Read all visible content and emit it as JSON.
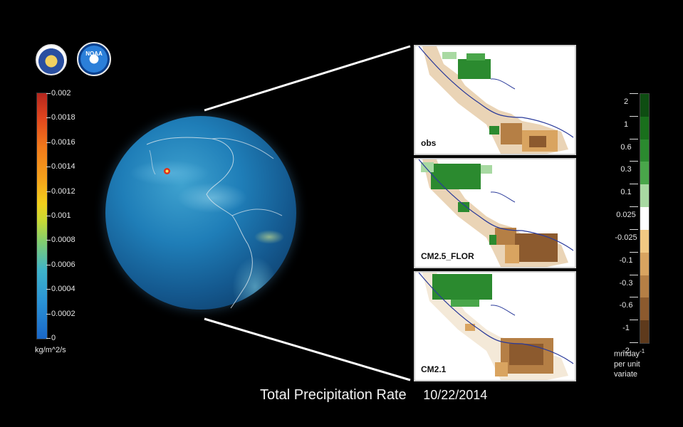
{
  "logos": {
    "noaa_text": "NOAA"
  },
  "precip_colorbar": {
    "labels": [
      "0.002",
      "0.0018",
      "0.0016",
      "0.0014",
      "0.0012",
      "0.001",
      "0.0008",
      "0.0006",
      "0.0004",
      "0.0002",
      "0"
    ],
    "unit": "kg/m^2/s"
  },
  "panels": [
    {
      "label": "obs"
    },
    {
      "label": "CM2.5_FLOR"
    },
    {
      "label": "CM2.1"
    }
  ],
  "anomaly_colorbar": {
    "labels": [
      "2",
      "1",
      "0.6",
      "0.3",
      "0.1",
      "0.025",
      "-0.025",
      "-0.1",
      "-0.3",
      "-0.6",
      "-1",
      "-2"
    ],
    "colors": [
      "#0e4d12",
      "#196f1c",
      "#2b8a2f",
      "#49a64a",
      "#a8d9a2",
      "#ffffff",
      "#f2c983",
      "#d9a460",
      "#b57f45",
      "#8c5a2e",
      "#5e3a1c"
    ],
    "unit_line1": "mmday",
    "unit_sup": "-1",
    "unit_line2": "per unit",
    "unit_line3": "variate"
  },
  "caption": {
    "title": "Total Precipitation Rate",
    "date": "10/22/2014"
  },
  "colors": {
    "background": "#000000",
    "wet_anomaly": "#2e8b2e",
    "dry_anomaly": "#b98148"
  }
}
